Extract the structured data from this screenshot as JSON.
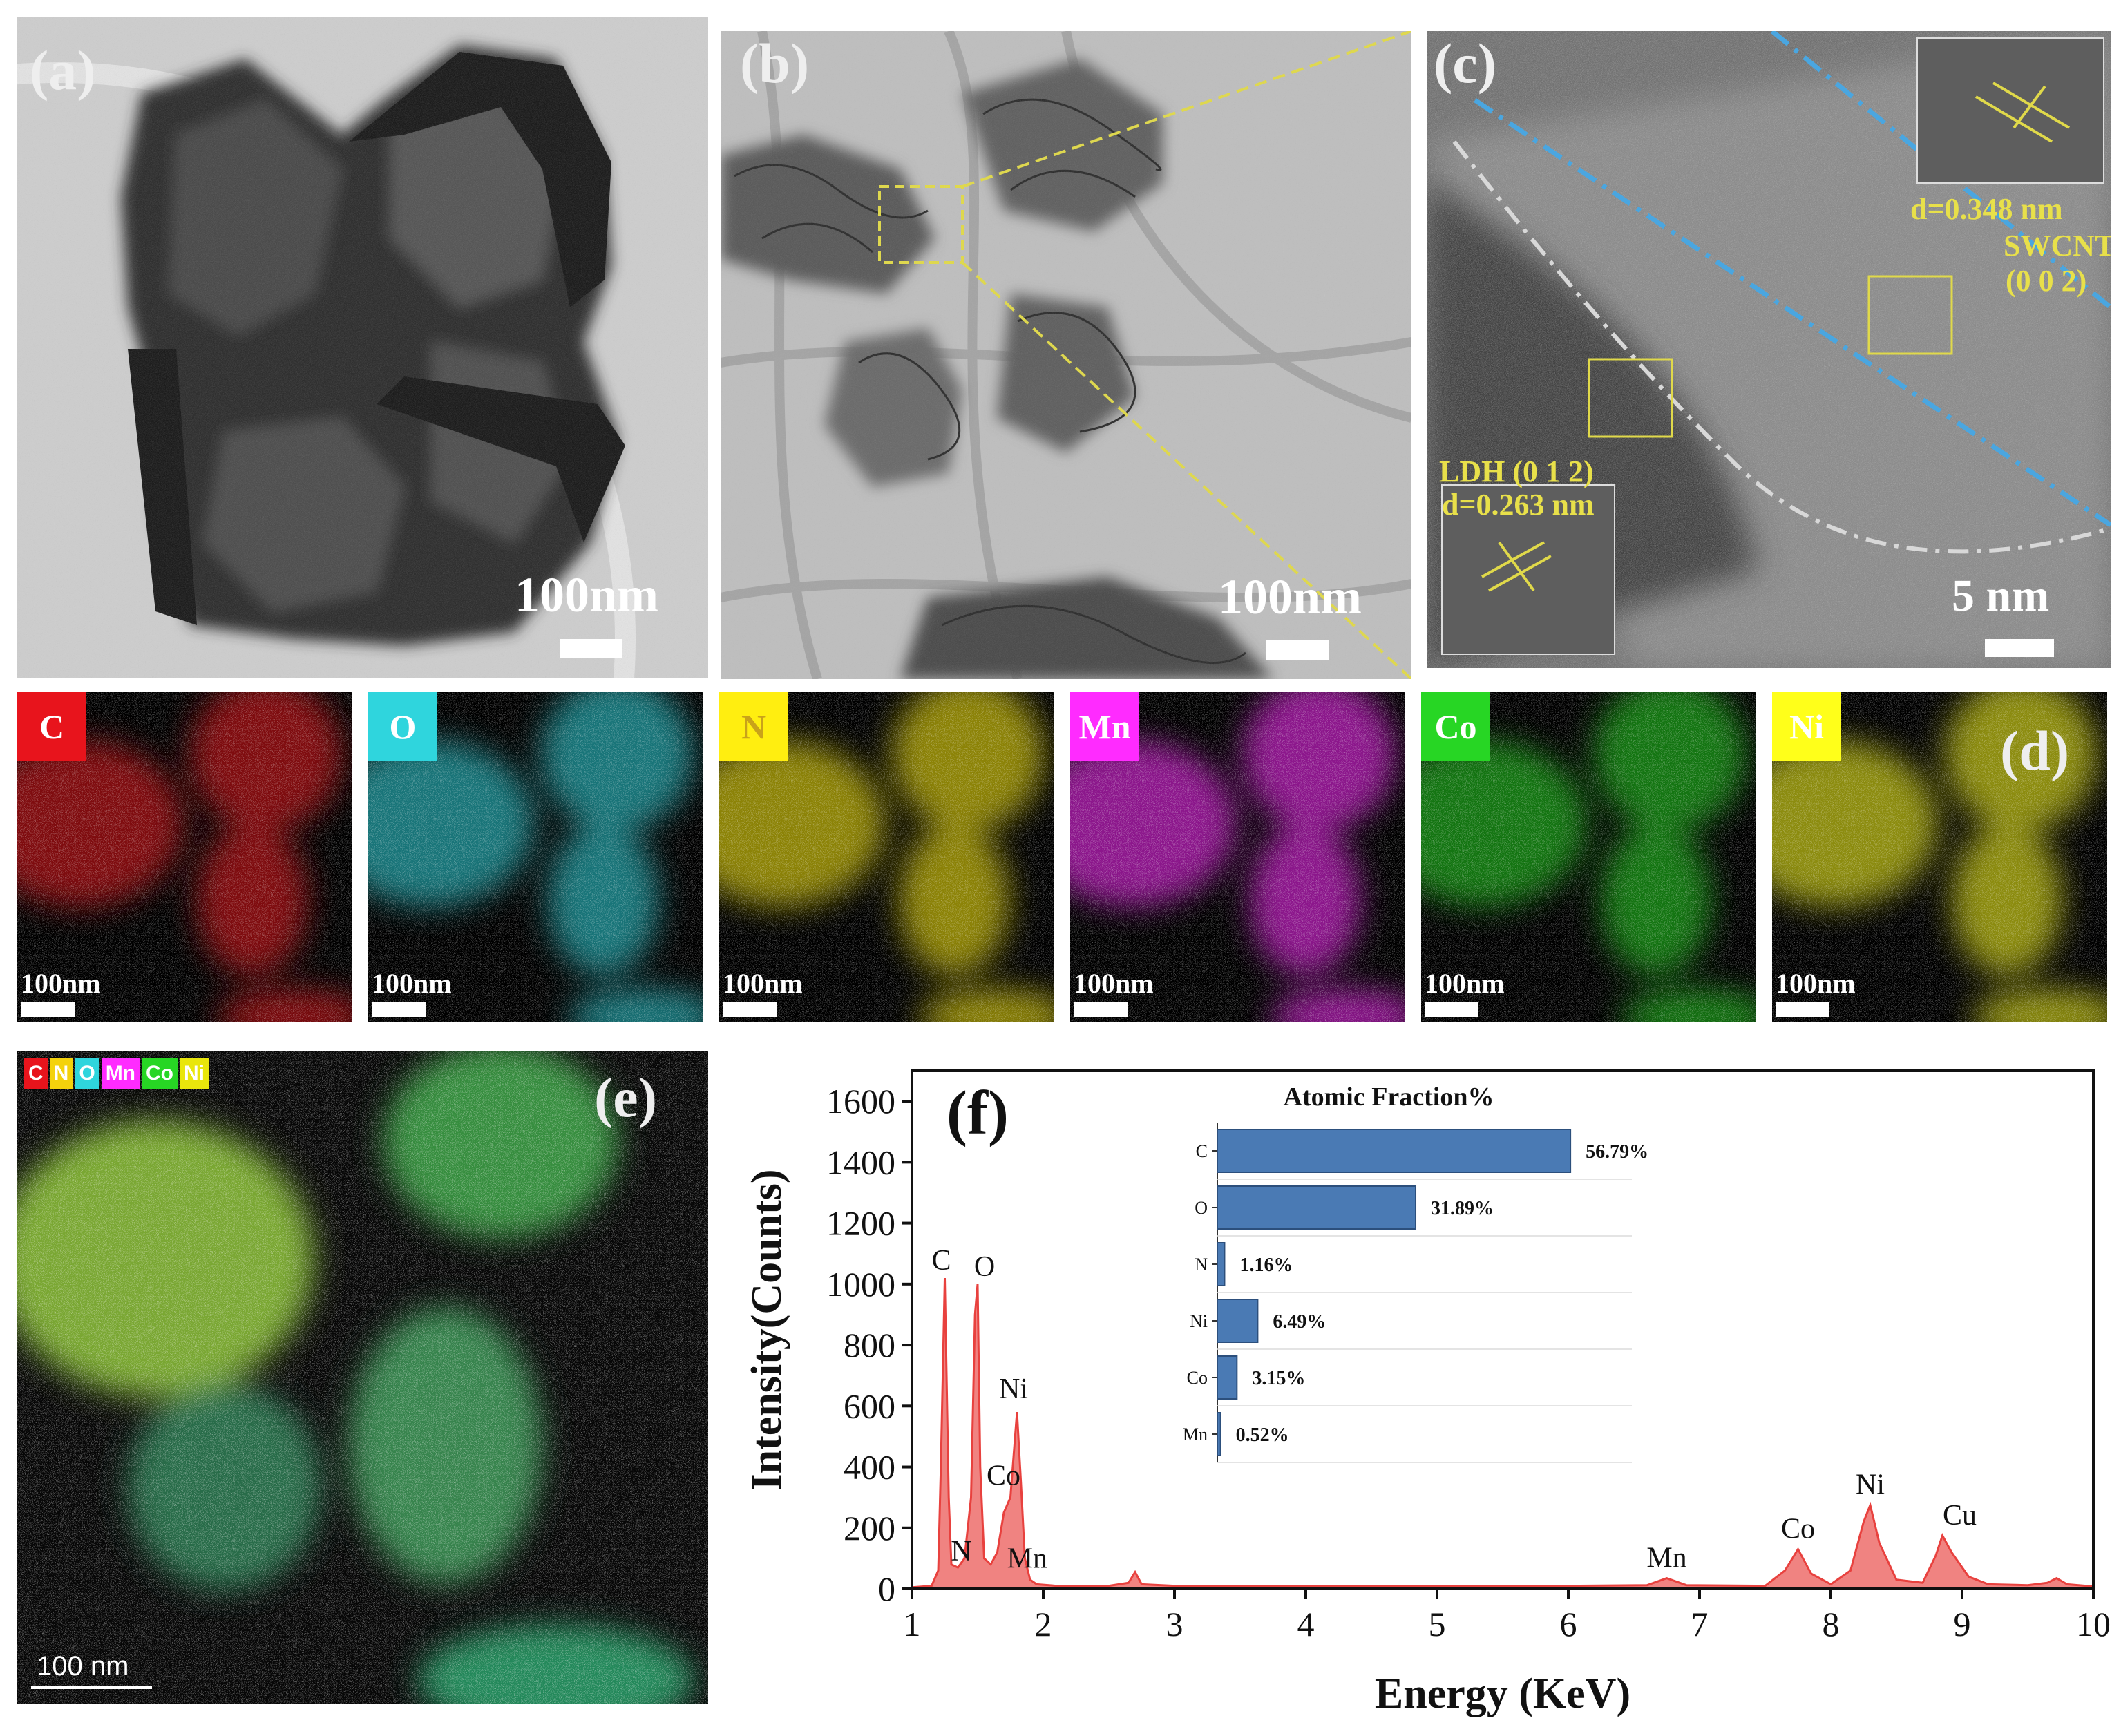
{
  "panel_a": {
    "label": "(a)",
    "scale_bar": "100nm"
  },
  "panel_b": {
    "label": "(b)",
    "scale_bar": "100nm"
  },
  "panel_c": {
    "label": "(c)",
    "scale_bar": "5 nm",
    "swcnt_spacing": "d=0.348 nm",
    "swcnt_name": "SWCNTs",
    "swcnt_plane": "(0 0 2)",
    "ldh_name": "LDH (0 1 2)",
    "ldh_spacing": "d=0.263 nm"
  },
  "panel_d": {
    "label": "(d)",
    "maps": [
      {
        "element": "C",
        "scale_bar": "100nm",
        "color": "#e8141c",
        "text_color": "#ffffff"
      },
      {
        "element": "O",
        "scale_bar": "100nm",
        "color": "#2fd5dd",
        "text_color": "#ffffff"
      },
      {
        "element": "N",
        "scale_bar": "100nm",
        "color": "#ffee10",
        "text_color": "#c9a21a"
      },
      {
        "element": "Mn",
        "scale_bar": "100nm",
        "color": "#ff2bff",
        "text_color": "#ffffff"
      },
      {
        "element": "Co",
        "scale_bar": "100nm",
        "color": "#27d624",
        "text_color": "#ffffff"
      },
      {
        "element": "Ni",
        "scale_bar": "100nm",
        "color": "#ffff1a",
        "text_color": "#ffffff"
      }
    ]
  },
  "panel_e": {
    "label": "(e)",
    "scale_bar": "100 nm",
    "legend": [
      {
        "text": "C",
        "color": "#e8141c"
      },
      {
        "text": "N",
        "color": "#f4d20c"
      },
      {
        "text": "O",
        "color": "#2fd5dd"
      },
      {
        "text": "Mn",
        "color": "#ff2bff"
      },
      {
        "text": "Co",
        "color": "#27d624"
      },
      {
        "text": "Ni",
        "color": "#e9e60c"
      }
    ]
  },
  "panel_f": {
    "label": "(f)"
  },
  "chart_data": [
    {
      "type": "area",
      "xlabel": "Energy (KeV)",
      "ylabel": "Intensity(Counts)",
      "xlim": [
        1,
        10
      ],
      "ylim": [
        0,
        1700
      ],
      "x_ticks": [
        1,
        2,
        3,
        4,
        5,
        6,
        7,
        8,
        9,
        10
      ],
      "y_ticks": [
        0,
        200,
        400,
        600,
        800,
        1000,
        1200,
        1400,
        1600
      ],
      "color": "#e8413e",
      "x": [
        1.0,
        1.15,
        1.2,
        1.22,
        1.25,
        1.28,
        1.3,
        1.35,
        1.4,
        1.45,
        1.48,
        1.5,
        1.52,
        1.55,
        1.6,
        1.65,
        1.7,
        1.75,
        1.8,
        1.83,
        1.86,
        1.9,
        1.95,
        2.1,
        2.5,
        2.65,
        2.7,
        2.75,
        3.0,
        3.5,
        4.0,
        5.0,
        6.0,
        6.6,
        6.75,
        6.9,
        7.5,
        7.65,
        7.75,
        7.85,
        8.0,
        8.15,
        8.25,
        8.3,
        8.37,
        8.5,
        8.7,
        8.8,
        8.85,
        8.92,
        9.05,
        9.2,
        9.5,
        9.65,
        9.72,
        9.8,
        10.0
      ],
      "y": [
        5,
        10,
        60,
        400,
        1020,
        300,
        80,
        70,
        100,
        300,
        900,
        1000,
        400,
        100,
        80,
        120,
        250,
        300,
        580,
        350,
        100,
        30,
        15,
        10,
        10,
        20,
        55,
        15,
        10,
        8,
        8,
        8,
        10,
        12,
        35,
        12,
        10,
        60,
        130,
        50,
        15,
        60,
        220,
        275,
        150,
        30,
        20,
        110,
        175,
        120,
        40,
        15,
        12,
        20,
        35,
        15,
        8
      ],
      "peak_labels": [
        {
          "text": "C",
          "x": 1.25,
          "y": 1020
        },
        {
          "text": "O",
          "x": 1.5,
          "y": 1000
        },
        {
          "text": "Ni",
          "x": 1.8,
          "y": 580
        },
        {
          "text": "Co",
          "x": 1.75,
          "y": 300
        },
        {
          "text": "N",
          "x": 1.35,
          "y": 70
        },
        {
          "text": "Mn",
          "x": 1.72,
          "y": 60
        },
        {
          "text": "Mn",
          "x": 6.75,
          "y": 35
        },
        {
          "text": "Co",
          "x": 7.75,
          "y": 130
        },
        {
          "text": "Ni",
          "x": 8.3,
          "y": 275
        },
        {
          "text": "Cu",
          "x": 8.85,
          "y": 175
        }
      ]
    },
    {
      "type": "bar",
      "orientation": "horizontal",
      "title": "Atomic Fraction%",
      "categories": [
        "C",
        "O",
        "N",
        "Ni",
        "Co",
        "Mn"
      ],
      "values": [
        56.79,
        31.89,
        1.16,
        6.49,
        3.15,
        0.52
      ],
      "value_labels": [
        "56.79%",
        "31.89%",
        "1.16%",
        "6.49%",
        "3.15%",
        "0.52%"
      ],
      "color": "#4a7ab4"
    }
  ]
}
